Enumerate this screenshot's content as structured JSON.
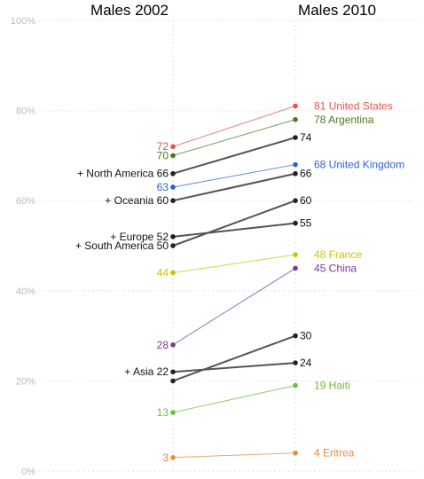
{
  "chart_data": {
    "type": "line",
    "x": [
      "Males 2002",
      "Males 2010"
    ],
    "ylim": [
      0,
      100
    ],
    "yticks": [
      "0%",
      "20%",
      "40%",
      "60%",
      "80%",
      "100%"
    ],
    "grid": true,
    "series": [
      {
        "name": "United States",
        "values": [
          72,
          81
        ],
        "color": "#e0554f"
      },
      {
        "name": "Argentina",
        "values": [
          70,
          78
        ],
        "color": "#4a7a1e"
      },
      {
        "name": "United Kingdom",
        "values": [
          63,
          68
        ],
        "color": "#2b5fd9"
      },
      {
        "name": "France",
        "values": [
          44,
          48
        ],
        "color": "#c9c400"
      },
      {
        "name": "China",
        "values": [
          28,
          45
        ],
        "color": "#7a3a9a"
      },
      {
        "name": "Haiti",
        "values": [
          13,
          19
        ],
        "color": "#6abf3a"
      },
      {
        "name": "Eritrea",
        "values": [
          3,
          4
        ],
        "color": "#e8893a"
      },
      {
        "name": "North America",
        "values": [
          66,
          74
        ],
        "color": "#555555"
      },
      {
        "name": "Oceania",
        "values": [
          60,
          66
        ],
        "color": "#555555"
      },
      {
        "name": "Europe",
        "values": [
          52,
          55
        ],
        "color": "#555555"
      },
      {
        "name": "South America",
        "values": [
          50,
          60
        ],
        "color": "#555555"
      },
      {
        "name": "Asia",
        "values": [
          22,
          24
        ],
        "color": "#555555"
      },
      {
        "name": "",
        "values": [
          20,
          30
        ],
        "color": "#555555"
      }
    ],
    "left_labels": [
      {
        "text": "72",
        "series": 0
      },
      {
        "text": "70",
        "series": 1
      },
      {
        "text": "+ North America  66",
        "series": 7
      },
      {
        "text": "63",
        "series": 2
      },
      {
        "text": "+ Oceania  60",
        "series": 8
      },
      {
        "text": "+ Europe  52",
        "series": 9
      },
      {
        "text": "+ South America  50",
        "series": 10
      },
      {
        "text": "44",
        "series": 3
      },
      {
        "text": "28",
        "series": 4
      },
      {
        "text": "+ Asia  22",
        "series": 11
      },
      {
        "text": "13",
        "series": 5
      },
      {
        "text": "3",
        "series": 6
      }
    ],
    "right_labels": [
      {
        "text": "81  United States",
        "series": 0
      },
      {
        "text": "78  Argentina",
        "series": 1
      },
      {
        "text": "74",
        "series": 7
      },
      {
        "text": "68  United Kingdom",
        "series": 2
      },
      {
        "text": "66",
        "series": 8
      },
      {
        "text": "60",
        "series": 10
      },
      {
        "text": "55",
        "series": 9
      },
      {
        "text": "48  France",
        "series": 3
      },
      {
        "text": "45  China",
        "series": 4
      },
      {
        "text": "30",
        "series": 12
      },
      {
        "text": "24",
        "series": 11
      },
      {
        "text": "19  Haiti",
        "series": 5
      },
      {
        "text": "4  Eritrea",
        "series": 6
      }
    ]
  }
}
